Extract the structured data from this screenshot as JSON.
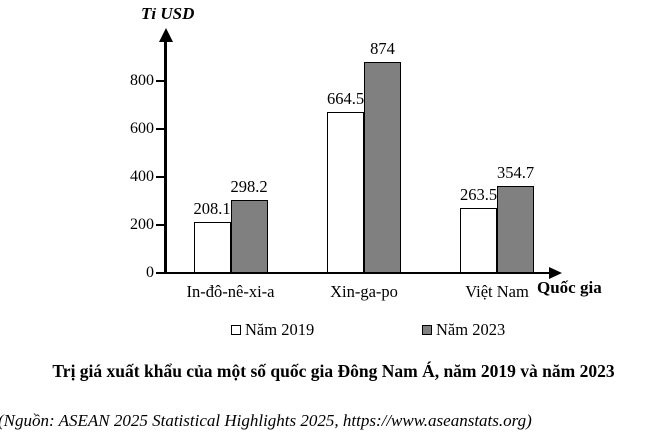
{
  "chart_data": {
    "type": "bar",
    "title": "Trị giá xuất khẩu của một số quốc gia Đông Nam Á, năm 2019 và năm 2023",
    "source": "(Nguồn: ASEAN 2025 Statistical Highlights 2025, https://www.aseanstats.org)",
    "y_axis_label": "Tỉ USD",
    "x_axis_label": "Quốc gia",
    "categories": [
      "In-đô-nê-xi-a",
      "Xin-ga-po",
      "Việt Nam"
    ],
    "series": [
      {
        "name": "Năm 2019",
        "color": "#ffffff",
        "values": [
          208.1,
          664.5,
          263.5
        ]
      },
      {
        "name": "Năm 2023",
        "color": "#808080",
        "values": [
          298.2,
          874,
          354.7
        ]
      }
    ],
    "y_ticks": [
      0,
      200,
      400,
      600,
      800
    ],
    "ylim": [
      0,
      900
    ],
    "grid": false,
    "legend_position": "bottom",
    "bar_border_color": "#000000",
    "axis_color": "#000000"
  }
}
